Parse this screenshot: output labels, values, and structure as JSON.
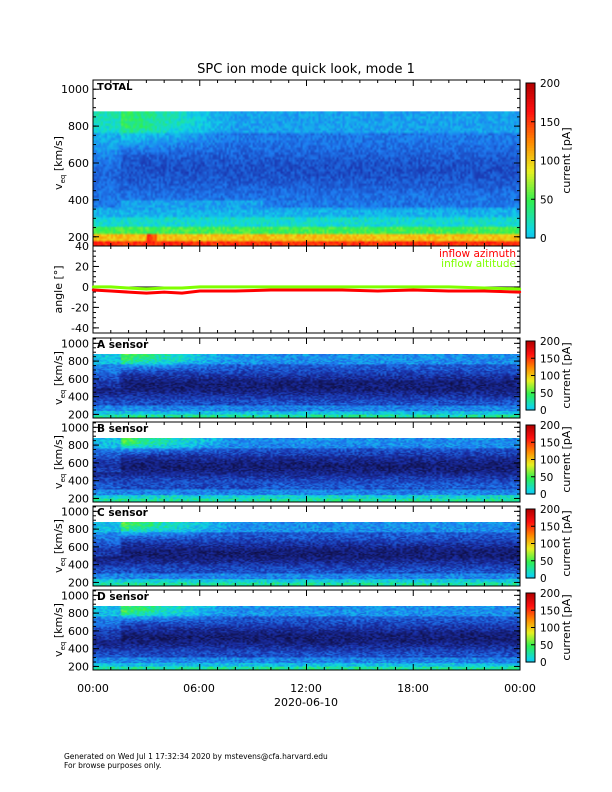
{
  "title": "SPC ion mode quick look, mode 1",
  "footer": {
    "line1": "Generated on Wed Jul  1 17:32:34 2020 by mstevens@cfa.harvard.edu",
    "line2": "For browse purposes only."
  },
  "colors": {
    "azimuth": "#ff0000",
    "altitude": "#7fff00",
    "colormap": [
      "#000000",
      "#10104a",
      "#1a2fa8",
      "#1e7df2",
      "#0fd6e6",
      "#30f050",
      "#e8f020",
      "#ff8800",
      "#ff1010",
      "#b00000"
    ]
  },
  "chart_data": [
    {
      "type": "heatmap",
      "name": "total",
      "label": "TOTAL",
      "ylabel": "v_eq [km/s]",
      "ylim": [
        150,
        1050
      ],
      "yticks": [
        200,
        400,
        600,
        800,
        1000
      ],
      "colorbar": {
        "label": "current [pA]",
        "range": [
          0,
          200
        ],
        "ticks": [
          0,
          50,
          100,
          150,
          200
        ]
      },
      "data_top": 880
    },
    {
      "type": "line",
      "name": "angle",
      "ylabel": "angle [°]",
      "ylim": [
        -45,
        40
      ],
      "yticks": [
        -40,
        -20,
        0,
        20,
        40
      ],
      "grid": "zero-line",
      "legend_position": "top-right",
      "series": [
        {
          "name": "inflow azimuth",
          "x_hours": [
            0,
            1,
            2,
            3,
            4,
            5,
            6,
            8,
            10,
            12,
            14,
            16,
            18,
            20,
            22,
            24
          ],
          "values": [
            -3,
            -4,
            -5,
            -6,
            -5,
            -6,
            -4,
            -4,
            -3,
            -3,
            -3,
            -4,
            -3,
            -4,
            -4,
            -5
          ]
        },
        {
          "name": "inflow altitude",
          "x_hours": [
            0,
            1,
            2,
            3,
            4,
            5,
            6,
            8,
            10,
            12,
            14,
            16,
            18,
            20,
            22,
            24
          ],
          "values": [
            0,
            0,
            -1,
            -2,
            -1,
            -1,
            0,
            0,
            0,
            0,
            0,
            0,
            0,
            0,
            -1,
            -2
          ]
        }
      ]
    },
    {
      "type": "heatmap",
      "name": "sensor-a",
      "label": "A sensor",
      "ylabel": "v_eq [km/s]",
      "ylim": [
        160,
        1060
      ],
      "yticks": [
        200,
        400,
        600,
        800,
        1000
      ],
      "colorbar": {
        "label": "current [pA]",
        "range": [
          0,
          200
        ],
        "ticks": [
          0,
          50,
          100,
          150,
          200
        ]
      },
      "data_top": 880
    },
    {
      "type": "heatmap",
      "name": "sensor-b",
      "label": "B sensor",
      "ylabel": "v_eq [km/s]",
      "ylim": [
        160,
        1060
      ],
      "yticks": [
        200,
        400,
        600,
        800,
        1000
      ],
      "colorbar": {
        "label": "current [pA]",
        "range": [
          0,
          200
        ],
        "ticks": [
          0,
          50,
          100,
          150,
          200
        ]
      },
      "data_top": 880
    },
    {
      "type": "heatmap",
      "name": "sensor-c",
      "label": "C sensor",
      "ylabel": "v_eq [km/s]",
      "ylim": [
        160,
        1060
      ],
      "yticks": [
        200,
        400,
        600,
        800,
        1000
      ],
      "colorbar": {
        "label": "current [pA]",
        "range": [
          0,
          200
        ],
        "ticks": [
          0,
          50,
          100,
          150,
          200
        ]
      },
      "data_top": 880
    },
    {
      "type": "heatmap",
      "name": "sensor-d",
      "label": "D sensor",
      "ylabel": "v_eq [km/s]",
      "ylim": [
        160,
        1060
      ],
      "yticks": [
        200,
        400,
        600,
        800,
        1000
      ],
      "colorbar": {
        "label": "current [pA]",
        "range": [
          0,
          200
        ],
        "ticks": [
          0,
          50,
          100,
          150,
          200
        ]
      },
      "data_top": 880
    }
  ],
  "xaxis": {
    "ticks": [
      "00:00",
      "06:00",
      "12:00",
      "18:00",
      "00:00"
    ],
    "date": "2020-06-10"
  }
}
